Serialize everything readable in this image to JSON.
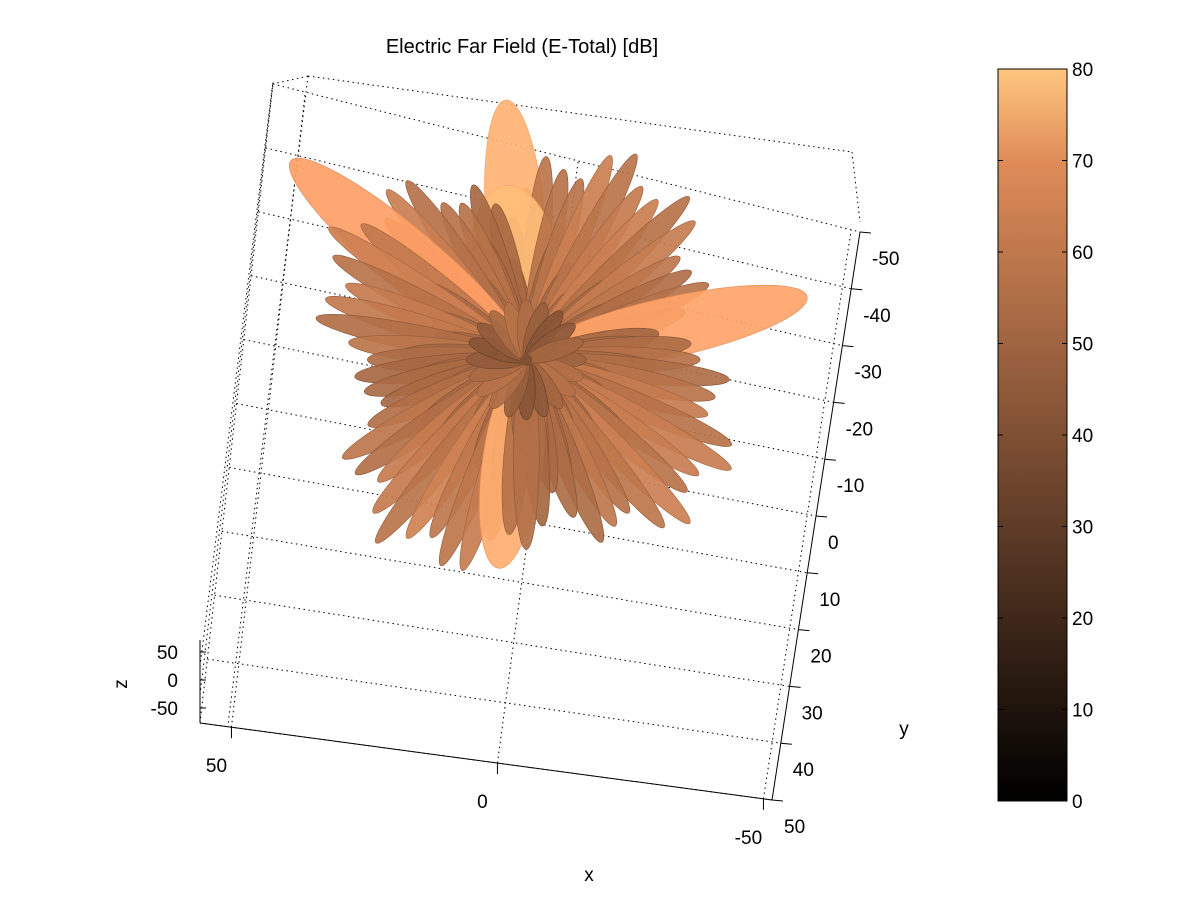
{
  "chart_data": {
    "type": "surface-3d",
    "title": "Electric Far Field (E-Total) [dB]",
    "xlabel": "x",
    "ylabel": "y",
    "zlabel": "z",
    "x_ticks": [
      "50",
      "0",
      "-50"
    ],
    "y_ticks": [
      "-50",
      "-40",
      "-30",
      "-20",
      "-10",
      "0",
      "10",
      "20",
      "30",
      "40",
      "50"
    ],
    "z_ticks": [
      "50",
      "0",
      "-50"
    ],
    "xlim": [
      -55,
      55
    ],
    "ylim": [
      -55,
      55
    ],
    "zlim": [
      -60,
      60
    ],
    "grid": true,
    "colormap": "copper",
    "colorbar": {
      "ticks": [
        "0",
        "10",
        "20",
        "30",
        "40",
        "50",
        "60",
        "70",
        "80"
      ],
      "range": [
        0,
        80
      ],
      "stops": [
        "#000000",
        "#1f140c",
        "#3f281a",
        "#5f3c28",
        "#7f5033",
        "#9f6441",
        "#bf784c",
        "#df8c59",
        "#ffc77f"
      ]
    },
    "pattern": {
      "description_free": true,
      "main_lobe_directions": [
        {
          "x": 10,
          "y": -45,
          "peak_dB": 72
        },
        {
          "x": 0,
          "y": 38,
          "peak_dB": 70
        },
        {
          "x": -50,
          "y": -22,
          "peak_dB": 66
        },
        {
          "x": 48,
          "y": -26,
          "peak_dB": 64
        },
        {
          "x": 8,
          "y": -30,
          "peak_dB": 76
        }
      ],
      "sidelobe_count": 64,
      "sidelobe_level_dB": [
        38,
        52
      ]
    }
  }
}
